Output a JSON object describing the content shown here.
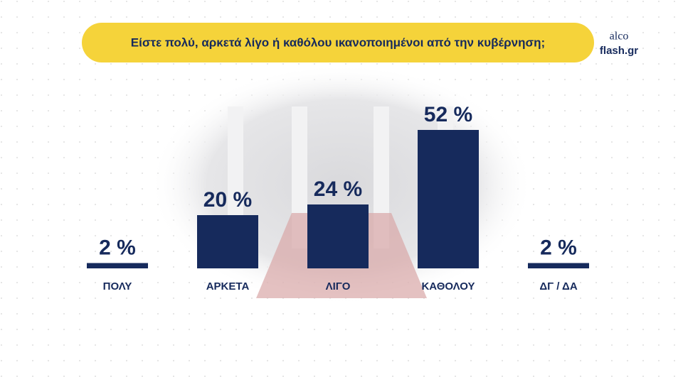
{
  "chart_data": {
    "type": "bar",
    "title": "Είστε πολύ, αρκετά λίγο ή καθόλου ικανοποιημένοι από την κυβέρνηση;",
    "logo": [
      "alco",
      "flash.gr"
    ],
    "categories": [
      "ΠΟΛΥ",
      "ΑΡΚΕΤΑ",
      "ΛΙΓΟ",
      "ΚΑΘΟΛΟΥ",
      "ΔΓ / ΔΑ"
    ],
    "values": [
      2,
      20,
      24,
      52,
      2
    ],
    "value_labels": [
      "2 %",
      "20 %",
      "24 %",
      "52 %",
      "2 %"
    ],
    "color": "#162a5c"
  }
}
